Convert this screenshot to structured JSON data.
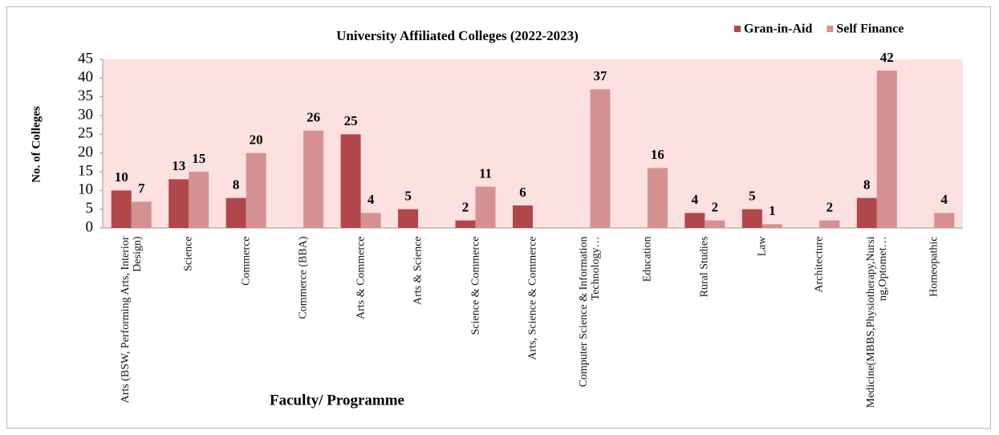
{
  "chart_data": {
    "type": "bar",
    "title": "University Affiliated Colleges (2022-2023)",
    "x_label": "Faculty/ Programme",
    "y_label": "No. of Colleges",
    "categories": [
      "Arts (BSW, Performing Arts, Interior Design)",
      "Science",
      "Commerce",
      "Commerce (BBA)",
      "Arts & Commerce",
      "Arts & Science",
      "Science & Commerce",
      "Arts, Science & Commerce",
      "Computer Science & Information Technology…",
      "Education",
      "Rural Studies",
      "Law",
      "Architecture",
      "Medicine(MBBS,Physiotherapy,Nursing,Optomet…",
      "Homeopathic"
    ],
    "series": [
      {
        "name": "Gran-in-Aid",
        "color": "#b0474b",
        "values": [
          10,
          13,
          8,
          null,
          25,
          5,
          2,
          6,
          null,
          null,
          4,
          5,
          null,
          8,
          null
        ]
      },
      {
        "name": "Self Finance",
        "color": "#d59191",
        "values": [
          7,
          15,
          20,
          26,
          4,
          null,
          11,
          null,
          37,
          16,
          2,
          1,
          2,
          42,
          4
        ]
      }
    ],
    "ylim": [
      0,
      45
    ],
    "yticks": [
      0,
      5,
      10,
      15,
      20,
      25,
      30,
      35,
      40,
      45
    ],
    "legend": "top-right",
    "plot_background": "#fde0e0"
  }
}
